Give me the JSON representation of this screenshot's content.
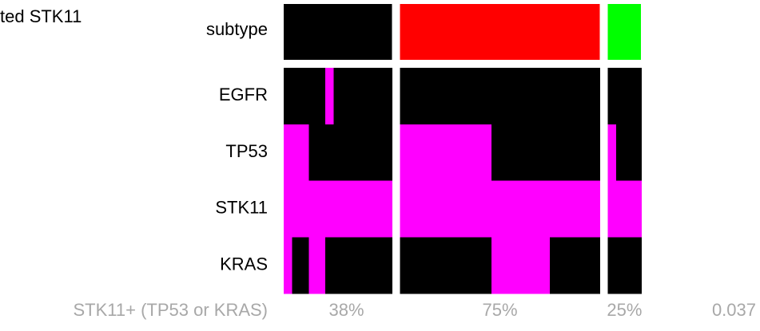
{
  "title": "ted STK11",
  "subtype_label": "subtype",
  "gene_rows": [
    "EGFR",
    "TP53",
    "STK11",
    "KRAS"
  ],
  "mutated_color": "#ff00ff",
  "wildtype_color": "#000000",
  "groups": [
    {
      "subtype_color": "#000000",
      "cells": [
        [
          0,
          0,
          0,
          0,
          0,
          1,
          0,
          0,
          0,
          0,
          0,
          0,
          0
        ],
        [
          1,
          1,
          1,
          0,
          0,
          0,
          0,
          0,
          0,
          0,
          0,
          0,
          0
        ],
        [
          1,
          1,
          1,
          1,
          1,
          1,
          1,
          1,
          1,
          1,
          1,
          1,
          1
        ],
        [
          1,
          0,
          0,
          1,
          1,
          0,
          0,
          0,
          0,
          0,
          0,
          0,
          0
        ]
      ],
      "percent": "38%"
    },
    {
      "subtype_color": "#ff0000",
      "cells": [
        [
          0,
          0,
          0,
          0,
          0,
          0,
          0,
          0,
          0,
          0,
          0,
          0,
          0,
          0,
          0,
          0,
          0,
          0,
          0,
          0,
          0,
          0,
          0,
          0
        ],
        [
          1,
          1,
          1,
          1,
          1,
          1,
          1,
          1,
          1,
          1,
          1,
          0,
          0,
          0,
          0,
          0,
          0,
          0,
          0,
          0,
          0,
          0,
          0,
          0
        ],
        [
          1,
          1,
          1,
          1,
          1,
          1,
          1,
          1,
          1,
          1,
          1,
          1,
          1,
          1,
          1,
          1,
          1,
          1,
          1,
          1,
          1,
          1,
          1,
          1
        ],
        [
          0,
          0,
          0,
          0,
          0,
          0,
          0,
          0,
          0,
          0,
          0,
          1,
          1,
          1,
          1,
          1,
          1,
          1,
          0,
          0,
          0,
          0,
          0,
          0
        ]
      ],
      "percent": "75%"
    },
    {
      "subtype_color": "#00ff00",
      "cells": [
        [
          0,
          0,
          0,
          0
        ],
        [
          1,
          0,
          0,
          0
        ],
        [
          1,
          1,
          1,
          1
        ],
        [
          0,
          0,
          0,
          0
        ]
      ],
      "percent": "25%"
    }
  ],
  "footer": {
    "label": "STK11+ (TP53 or KRAS)",
    "p_value": "0.037"
  }
}
